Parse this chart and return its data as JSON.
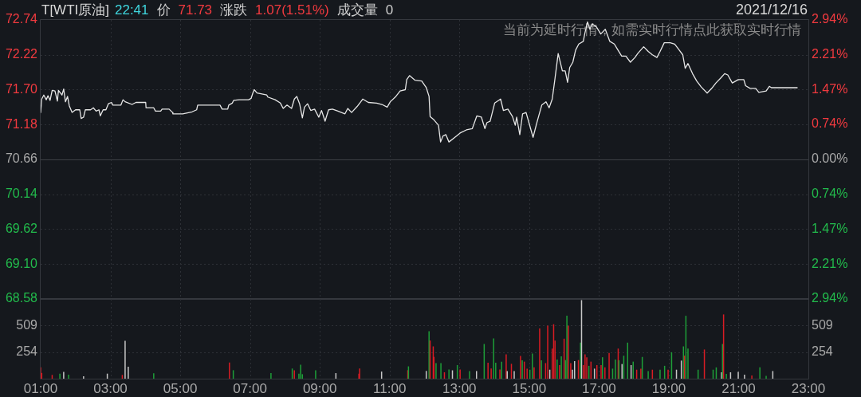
{
  "chart_data": [
    {
      "type": "line",
      "title": "T[WTI原油]",
      "annotations": [
        "22:41",
        "价",
        "71.73",
        "涨跌",
        "1.07(1.51%)",
        "成交量",
        "0",
        "2021/12/16",
        "当前为延时行情，如需实时行情点此获取实时行情"
      ],
      "x": [
        1.0,
        1.03,
        1.09,
        1.16,
        1.21,
        1.27,
        1.33,
        1.41,
        1.48,
        1.51,
        1.61,
        1.66,
        1.71,
        1.77,
        1.82,
        1.9,
        2.0,
        2.12,
        2.16,
        2.23,
        2.28,
        2.43,
        2.51,
        2.59,
        2.67,
        2.71,
        2.79,
        2.87,
        2.94,
        3.03,
        3.07,
        3.3,
        3.36,
        3.42,
        3.62,
        3.73,
        4.01,
        4.02,
        4.24,
        4.29,
        4.44,
        4.48,
        4.68,
        4.78,
        4.79,
        5.07,
        5.34,
        5.47,
        5.5,
        6.14,
        6.2,
        6.36,
        6.39,
        6.49,
        6.53,
        6.69,
        6.96,
        7.03,
        7.08,
        7.12,
        7.2,
        7.48,
        7.51,
        7.72,
        7.87,
        7.95,
        8.06,
        8.19,
        8.27,
        8.34,
        8.42,
        8.5,
        8.56,
        8.65,
        8.74,
        8.85,
        8.97,
        9.05,
        9.15,
        9.25,
        9.36,
        9.52,
        9.72,
        9.8,
        9.91,
        10.07,
        10.23,
        10.39,
        10.63,
        10.78,
        10.93,
        11.02,
        11.18,
        11.3,
        11.45,
        11.49,
        11.57,
        11.73,
        11.92,
        12.05,
        12.13,
        12.16,
        12.27,
        12.4,
        12.46,
        12.53,
        12.61,
        12.7,
        12.87,
        13.04,
        13.2,
        13.37,
        13.5,
        13.63,
        13.73,
        13.79,
        13.88,
        14.01,
        14.18,
        14.26,
        14.39,
        14.52,
        14.6,
        14.64,
        14.73,
        14.81,
        14.91,
        14.98,
        15.11,
        15.23,
        15.36,
        15.48,
        15.57,
        15.66,
        15.74,
        15.83,
        15.95,
        16.03,
        16.1,
        16.16,
        16.25,
        16.33,
        16.42,
        16.55,
        16.59,
        16.67,
        16.74,
        16.8,
        16.92,
        17.05,
        17.18,
        17.31,
        17.44,
        17.52,
        17.65,
        17.77,
        17.9,
        18.03,
        18.11,
        18.28,
        18.41,
        18.53,
        18.66,
        18.75,
        18.87,
        19.04,
        19.17,
        19.3,
        19.4,
        19.47,
        19.55,
        19.68,
        19.8,
        19.93,
        20.1,
        20.23,
        20.35,
        20.48,
        20.6,
        20.69,
        20.82,
        20.99,
        21.15,
        21.2,
        21.33,
        21.49,
        21.58,
        21.79,
        21.88,
        21.94,
        22.68
      ],
      "series": [
        {
          "color": "#e6e6e6",
          "values": [
            71.36,
            71.56,
            71.62,
            71.55,
            71.61,
            71.54,
            71.69,
            71.68,
            71.53,
            71.69,
            71.62,
            71.71,
            71.52,
            71.6,
            71.46,
            71.36,
            71.4,
            71.4,
            71.27,
            71.29,
            71.4,
            71.4,
            71.43,
            71.38,
            71.4,
            71.31,
            71.4,
            71.4,
            71.49,
            71.51,
            71.47,
            71.47,
            71.55,
            71.52,
            71.48,
            71.51,
            71.51,
            71.43,
            71.43,
            71.38,
            71.38,
            71.41,
            71.41,
            71.36,
            71.34,
            71.34,
            71.37,
            71.4,
            71.47,
            71.47,
            71.41,
            71.41,
            71.47,
            71.5,
            71.54,
            71.55,
            71.55,
            71.57,
            71.65,
            71.7,
            71.65,
            71.62,
            71.59,
            71.55,
            71.5,
            71.42,
            71.47,
            71.42,
            71.56,
            71.6,
            71.49,
            71.28,
            71.44,
            71.49,
            71.39,
            71.41,
            71.29,
            71.39,
            71.23,
            71.4,
            71.41,
            71.38,
            71.34,
            71.42,
            71.36,
            71.45,
            71.56,
            71.51,
            71.5,
            71.48,
            71.44,
            71.52,
            71.6,
            71.68,
            71.7,
            71.85,
            71.91,
            71.84,
            71.83,
            71.73,
            71.6,
            71.3,
            71.25,
            71.17,
            70.92,
            71.01,
            71.03,
            70.92,
            70.99,
            71.06,
            71.1,
            71.12,
            71.31,
            71.29,
            71.12,
            71.21,
            71.23,
            71.5,
            71.56,
            71.39,
            71.41,
            71.3,
            71.17,
            71.29,
            71.03,
            71.34,
            71.36,
            71.23,
            70.99,
            71.23,
            71.47,
            71.52,
            71.43,
            71.56,
            71.87,
            72.24,
            71.98,
            71.98,
            71.81,
            72.03,
            72.11,
            72.29,
            72.38,
            72.42,
            72.53,
            72.71,
            72.6,
            72.68,
            72.64,
            72.53,
            72.6,
            72.42,
            72.38,
            72.31,
            72.2,
            72.2,
            72.11,
            72.18,
            72.24,
            72.34,
            72.27,
            72.22,
            72.18,
            72.27,
            72.4,
            72.4,
            72.38,
            72.29,
            72.22,
            72.02,
            72.09,
            71.94,
            71.83,
            71.74,
            71.65,
            71.72,
            71.8,
            71.87,
            71.94,
            71.92,
            71.8,
            71.85,
            71.85,
            71.76,
            71.72,
            71.72,
            71.66,
            71.68,
            71.75,
            71.73,
            71.73
          ]
        }
      ],
      "xlim": [
        1,
        23
      ],
      "xticks": [
        {
          "value": 1,
          "label": null
        },
        {
          "value": 3,
          "label": null
        },
        {
          "value": 5,
          "label": null
        },
        {
          "value": 7,
          "label": null
        },
        {
          "value": 9,
          "label": null
        },
        {
          "value": 11,
          "label": null
        },
        {
          "value": 13,
          "label": null
        },
        {
          "value": 15,
          "label": null
        },
        {
          "value": 17,
          "label": null
        },
        {
          "value": 19,
          "label": null
        },
        {
          "value": 21,
          "label": null
        },
        {
          "value": 23,
          "label": null
        }
      ],
      "ylim": [
        68.58,
        72.74
      ],
      "yticks": [
        72.74,
        72.22,
        {
          "value": 71.7,
          "label": "71.70"
        },
        71.18,
        70.66,
        70.14,
        69.62,
        {
          "value": 69.1,
          "label": "69.10"
        },
        68.58
      ],
      "y2lim": [
        -2.94,
        2.94
      ],
      "y2ticks": [
        {
          "value": 2.94,
          "label": "2.94%"
        },
        {
          "value": 2.21,
          "label": "2.21%"
        },
        {
          "value": 1.47,
          "label": "1.47%"
        },
        {
          "value": 0.74,
          "label": "0.74%"
        },
        {
          "value": 0,
          "label": "0.00%"
        },
        {
          "value": -0.74,
          "label": "0.74%"
        },
        {
          "value": -1.47,
          "label": "1.47%"
        },
        {
          "value": -2.21,
          "label": "2.21%"
        },
        {
          "value": -2.94,
          "label": "2.94%"
        }
      ],
      "ref_lines": [
        {
          "axis": "y",
          "value": 70.66,
          "color": "#3d4046"
        }
      ],
      "grid": true,
      "tick_labels": "y"
    },
    {
      "type": "bar",
      "x": [
        1.0,
        1.03,
        1.33,
        1.55,
        1.66,
        1.8,
        2.23,
        2.91,
        3.34,
        3.42,
        3.51,
        4.24,
        6.41,
        6.52,
        7.6,
        8.21,
        8.27,
        8.4,
        8.45,
        8.5,
        8.88,
        9.46,
        10.12,
        10.14,
        10.77,
        11.52,
        11.54,
        12.05,
        12.13,
        12.16,
        12.25,
        12.27,
        12.33,
        12.47,
        12.57,
        12.7,
        12.8,
        12.94,
        13.02,
        13.29,
        13.49,
        13.71,
        13.82,
        13.91,
        13.98,
        14.04,
        14.16,
        14.21,
        14.34,
        14.37,
        14.49,
        14.57,
        14.75,
        14.8,
        14.86,
        14.94,
        15.02,
        15.09,
        15.14,
        15.3,
        15.35,
        15.47,
        15.53,
        15.59,
        15.66,
        15.7,
        15.74,
        15.8,
        15.87,
        15.92,
        16.0,
        16.04,
        16.08,
        16.12,
        16.19,
        16.24,
        16.3,
        16.41,
        16.47,
        16.5,
        16.55,
        16.6,
        16.65,
        16.71,
        16.77,
        16.87,
        16.94,
        17.06,
        17.1,
        17.17,
        17.29,
        17.39,
        17.47,
        17.55,
        17.57,
        17.66,
        17.71,
        17.82,
        17.92,
        17.98,
        18.08,
        18.2,
        18.24,
        18.41,
        18.53,
        18.75,
        18.88,
        18.98,
        19.08,
        19.22,
        19.36,
        19.42,
        19.45,
        19.49,
        19.55,
        19.84,
        20.02,
        20.27,
        20.36,
        20.51,
        20.54,
        20.57,
        20.65,
        20.77,
        20.99,
        21.17,
        21.38,
        21.61,
        21.79,
        21.98
      ],
      "values": [
        108,
        55,
        36,
        48,
        65,
        38,
        23,
        48,
        36,
        363,
        114,
        52,
        154,
        81,
        53,
        97,
        81,
        48,
        133,
        43,
        81,
        53,
        48,
        98,
        68,
        81,
        118,
        74,
        454,
        365,
        309,
        209,
        149,
        149,
        61,
        88,
        80,
        130,
        88,
        73,
        73,
        332,
        152,
        97,
        385,
        152,
        88,
        163,
        233,
        73,
        142,
        73,
        218,
        176,
        163,
        96,
        86,
        241,
        108,
        480,
        176,
        149,
        507,
        86,
        288,
        521,
        365,
        183,
        130,
        213,
        383,
        178,
        602,
        507,
        149,
        86,
        168,
        178,
        345,
        752,
        130,
        233,
        205,
        123,
        163,
        96,
        130,
        130,
        205,
        108,
        246,
        96,
        183,
        288,
        176,
        140,
        220,
        345,
        130,
        163,
        86,
        96,
        208,
        73,
        86,
        86,
        123,
        86,
        253,
        86,
        173,
        309,
        220,
        602,
        288,
        86,
        279,
        86,
        108,
        61,
        332,
        615,
        46,
        61,
        65,
        38,
        31,
        108,
        26,
        73
      ],
      "colors": [
        "#d91c24",
        "#d91c24",
        "#d91c24",
        "#1e9f38",
        "#c8c8c8",
        "#1e9f38",
        "#c8c8c8",
        "#c8c8c8",
        "#d91c24",
        "#c8c8c8",
        "#c8c8c8",
        "#1e9f38",
        "#d91c24",
        "#1e9f38",
        "#1e9f38",
        "#1e9f38",
        "#d91c24",
        "#1e9f38",
        "#1e9f38",
        "#1e9f38",
        "#1e9f38",
        "#c8c8c8",
        "#d91c24",
        "#d91c24",
        "#c8c8c8",
        "#d91c24",
        "#1e9f38",
        "#c8c8c8",
        "#1e9f38",
        "#d91c24",
        "#d91c24",
        "#d91c24",
        "#1e9f38",
        "#1e9f38",
        "#d91c24",
        "#1e9f38",
        "#c8c8c8",
        "#1e9f38",
        "#d91c24",
        "#1e9f38",
        "#c8c8c8",
        "#1e9f38",
        "#d91c24",
        "#d91c24",
        "#1e9f38",
        "#1e9f38",
        "#d91c24",
        "#1e9f38",
        "#d91c24",
        "#c8c8c8",
        "#d91c24",
        "#c8c8c8",
        "#d91c24",
        "#1e9f38",
        "#d91c24",
        "#d91c24",
        "#1e9f38",
        "#1e9f38",
        "#d91c24",
        "#d91c24",
        "#1e9f38",
        "#d91c24",
        "#d91c24",
        "#c8c8c8",
        "#d91c24",
        "#d91c24",
        "#d91c24",
        "#1e9f38",
        "#d91c24",
        "#1e9f38",
        "#d91c24",
        "#1e9f38",
        "#1e9f38",
        "#d91c24",
        "#d91c24",
        "#c8c8c8",
        "#c8c8c8",
        "#d91c24",
        "#1e9f38",
        "#c8c8c8",
        "#d91c24",
        "#d91c24",
        "#d91c24",
        "#1e9f38",
        "#d91c24",
        "#c8c8c8",
        "#d91c24",
        "#d91c24",
        "#1e9f38",
        "#d91c24",
        "#d91c24",
        "#1e9f38",
        "#1e9f38",
        "#d91c24",
        "#1e9f38",
        "#c8c8c8",
        "#1e9f38",
        "#1e9f38",
        "#c8c8c8",
        "#1e9f38",
        "#d91c24",
        "#d91c24",
        "#1e9f38",
        "#1e9f38",
        "#d91c24",
        "#1e9f38",
        "#1e9f38",
        "#d91c24",
        "#1e9f38",
        "#c8c8c8",
        "#c8c8c8",
        "#1e9f38",
        "#d91c24",
        "#1e9f38",
        "#1e9f38",
        "#1e9f38",
        "#d91c24",
        "#1e9f38",
        "#1e9f38",
        "#c8c8c8",
        "#1e9f38",
        "#d91c24",
        "#1e9f38",
        "#c8c8c8",
        "#c8c8c8",
        "#c8c8c8",
        "#d91c24",
        "#1e9f38",
        "#1e9f38",
        "#c8c8c8"
      ],
      "xlim": [
        1,
        23
      ],
      "xticks": [
        {
          "value": 1,
          "label": "01:00"
        },
        {
          "value": 3,
          "label": "03:00"
        },
        {
          "value": 5,
          "label": "05:00"
        },
        {
          "value": 7,
          "label": "07:00"
        },
        {
          "value": 9,
          "label": "09:00"
        },
        {
          "value": 11,
          "label": "11:00"
        },
        {
          "value": 13,
          "label": "13:00"
        },
        {
          "value": 15,
          "label": "15:00"
        },
        {
          "value": 17,
          "label": "17:00"
        },
        {
          "value": 19,
          "label": "19:00"
        },
        {
          "value": 21,
          "label": "21:00"
        },
        {
          "value": 23,
          "label": "23:00"
        }
      ],
      "ylim": [
        0,
        763
      ],
      "yticks": [
        254,
        509
      ],
      "y2lim": [
        0,
        763
      ],
      "y2ticks": [
        254,
        509
      ],
      "grid": true
    }
  ]
}
